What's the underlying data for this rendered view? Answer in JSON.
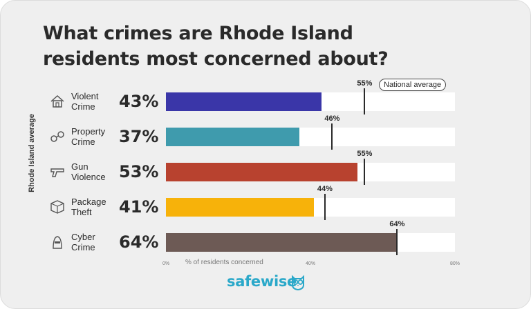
{
  "title": "What crimes are Rhode Island\nresidents most concerned about?",
  "brand": "safewise",
  "chart_data": {
    "type": "bar",
    "orientation": "horizontal",
    "title": "What crimes are Rhode Island residents most concerned about?",
    "ylabel": "Rhode Island average",
    "xlabel": "% of residents concerned",
    "xlim": [
      0,
      80
    ],
    "x_ticks": [
      "0%",
      "40%",
      "80%"
    ],
    "reference_label": "National average",
    "categories": [
      "Violent Crime",
      "Property Crime",
      "Gun Violence",
      "Package Theft",
      "Cyber Crime"
    ],
    "category_labels": [
      "Violent\nCrime",
      "Property\nCrime",
      "Gun\nViolence",
      "Package\nTheft",
      "Cyber\nCrime"
    ],
    "icons": [
      "house-icon",
      "handcuffs-icon",
      "gun-icon",
      "package-icon",
      "hacker-icon"
    ],
    "series": [
      {
        "values": [
          43,
          37,
          53,
          41,
          64
        ]
      },
      {
        "name": "National average",
        "values": [
          55,
          46,
          55,
          44,
          64
        ]
      }
    ],
    "value_labels": [
      "43%",
      "37%",
      "53%",
      "41%",
      "64%"
    ],
    "national_labels": [
      "55%",
      "46%",
      "55%",
      "44%",
      "64%"
    ],
    "colors": [
      "#3a36a8",
      "#3f9bad",
      "#b8422f",
      "#f7b20a",
      "#6d5a55"
    ],
    "legend_position": "inline",
    "grid": false
  }
}
